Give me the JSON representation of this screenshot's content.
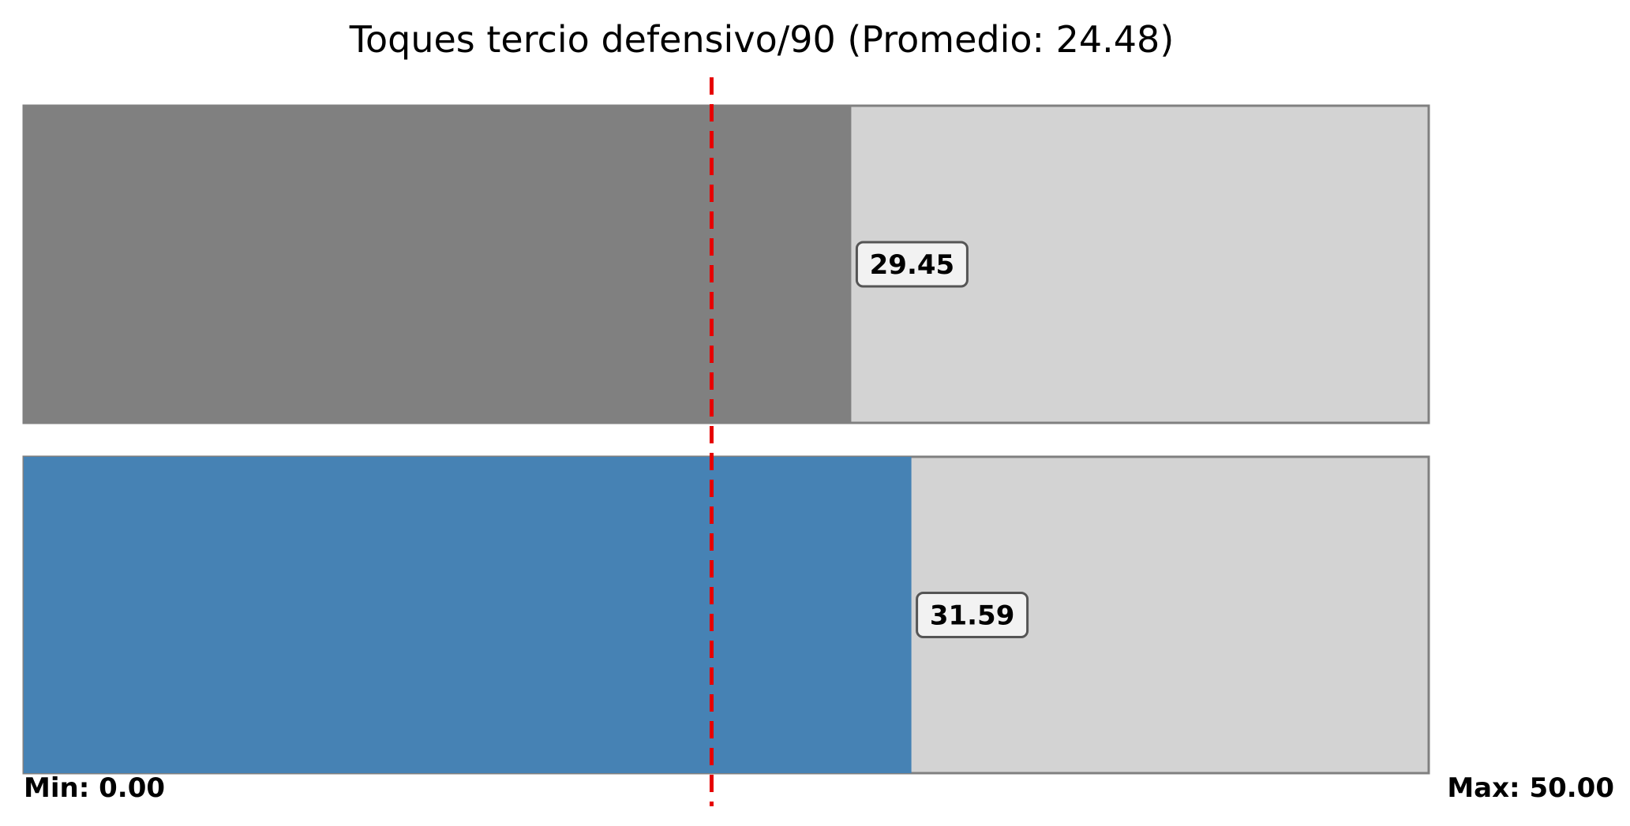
{
  "chart_data": {
    "type": "bar",
    "orientation": "horizontal",
    "title": "Toques tercio defensivo/90 (Promedio: 24.48)",
    "xlim": [
      0,
      50
    ],
    "average": 24.48,
    "min_label": "Min: 0.00",
    "max_label": "Max: 50.00",
    "bars": [
      {
        "value": 29.45,
        "label": "29.45",
        "color": "#808080"
      },
      {
        "value": 31.59,
        "label": "31.59",
        "color": "#4682b4"
      }
    ],
    "track_color": "#d3d3d3",
    "track_border_color": "#808080",
    "average_line_color": "#e60000",
    "grid": false
  }
}
